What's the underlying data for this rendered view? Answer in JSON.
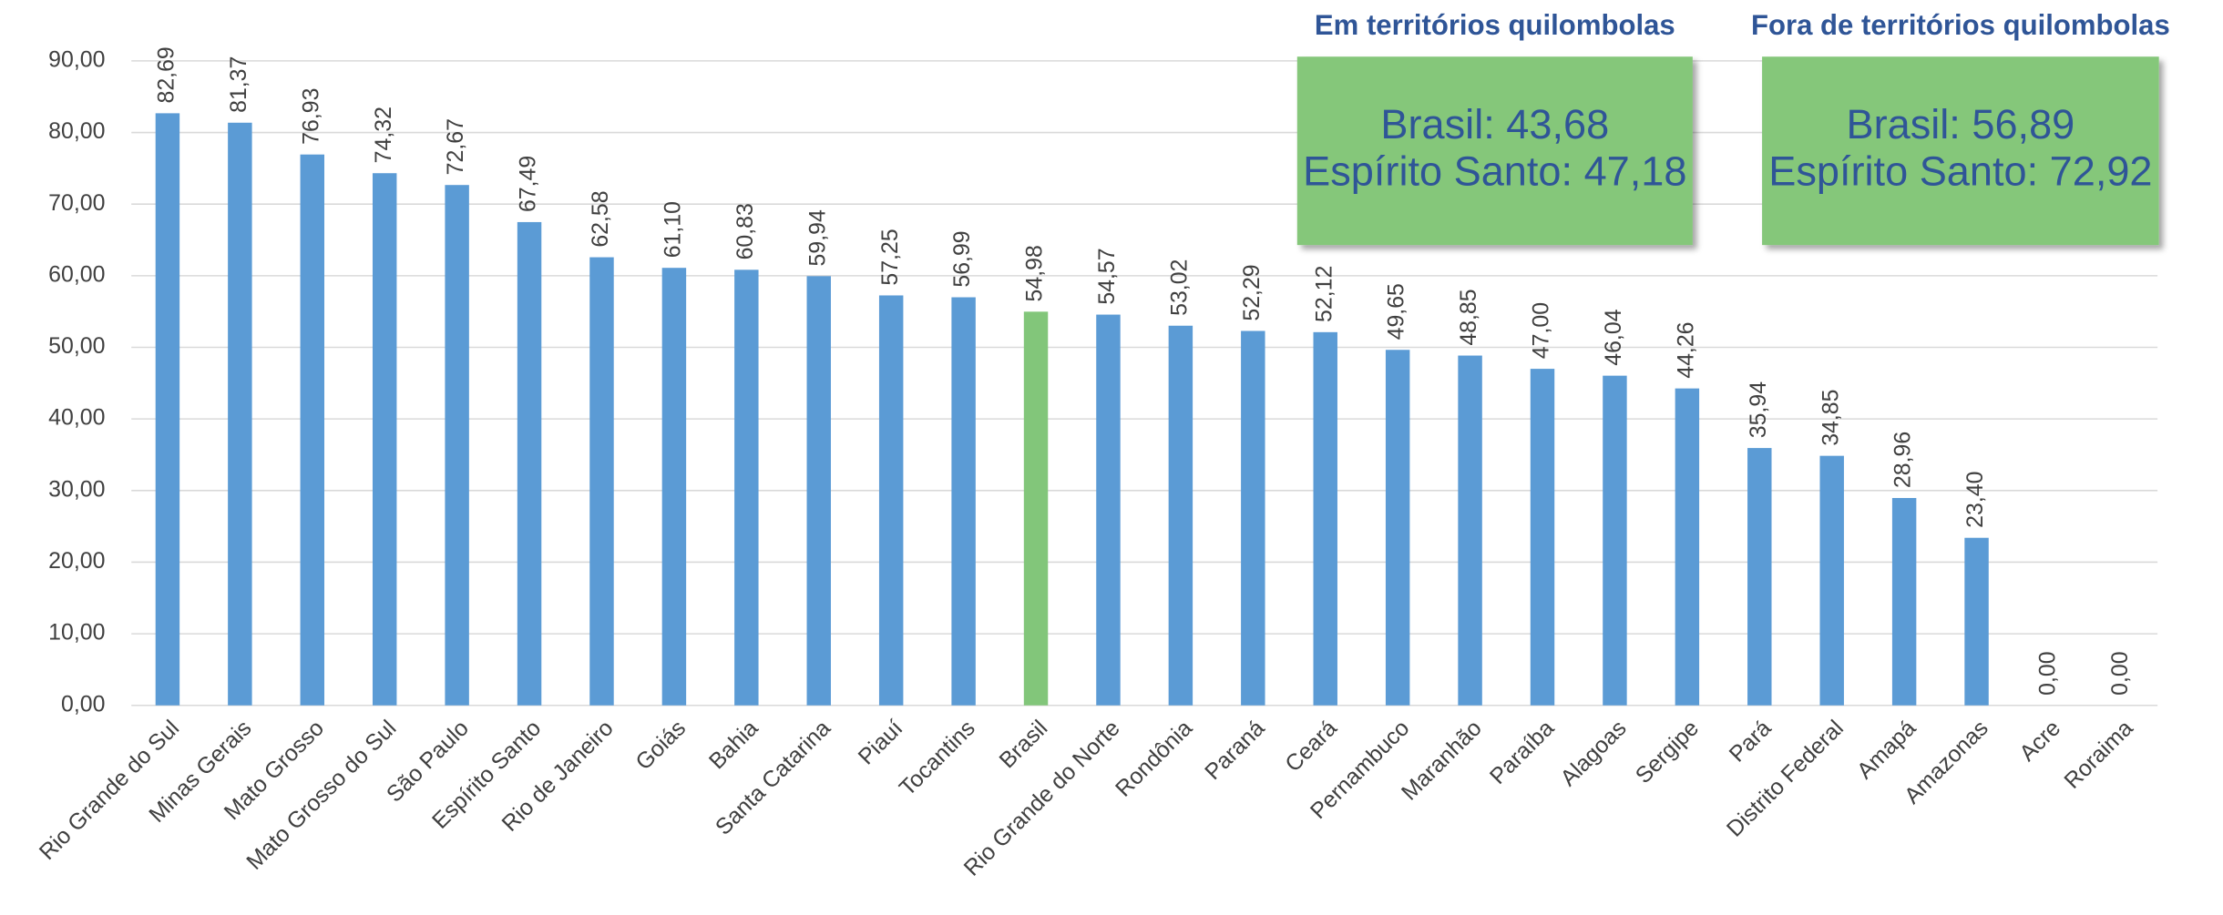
{
  "chart_data": {
    "type": "bar",
    "categories": [
      "Rio Grande do Sul",
      "Minas Gerais",
      "Mato Grosso",
      "Mato Grosso do Sul",
      "São Paulo",
      "Espírito Santo",
      "Rio de Janeiro",
      "Goiás",
      "Bahia",
      "Santa Catarina",
      "Piauí",
      "Tocantins",
      "Brasil",
      "Rio Grande do Norte",
      "Rondônia",
      "Paraná",
      "Ceará",
      "Pernambuco",
      "Maranhão",
      "Paraíba",
      "Alagoas",
      "Sergipe",
      "Pará",
      "Distrito Federal",
      "Amapá",
      "Amazonas",
      "Acre",
      "Roraima"
    ],
    "values": [
      82.69,
      81.37,
      76.93,
      74.32,
      72.67,
      67.49,
      62.58,
      61.1,
      60.83,
      59.94,
      57.25,
      56.99,
      54.98,
      54.57,
      53.02,
      52.29,
      52.12,
      49.65,
      48.85,
      47.0,
      46.04,
      44.26,
      35.94,
      34.85,
      28.96,
      23.4,
      0,
      0
    ],
    "value_labels": [
      "82,69",
      "81,37",
      "76,93",
      "74,32",
      "72,67",
      "67,49",
      "62,58",
      "61,10",
      "60,83",
      "59,94",
      "57,25",
      "56,99",
      "54,98",
      "54,57",
      "53,02",
      "52,29",
      "52,12",
      "49,65",
      "48,85",
      "47,00",
      "46,04",
      "44,26",
      "35,94",
      "34,85",
      "28,96",
      "23,40",
      "0,00",
      "0,00"
    ],
    "colors": [
      "#5b9bd5",
      "#5b9bd5",
      "#5b9bd5",
      "#5b9bd5",
      "#5b9bd5",
      "#5b9bd5",
      "#5b9bd5",
      "#5b9bd5",
      "#5b9bd5",
      "#5b9bd5",
      "#5b9bd5",
      "#5b9bd5",
      "#82c67a",
      "#5b9bd5",
      "#5b9bd5",
      "#5b9bd5",
      "#5b9bd5",
      "#5b9bd5",
      "#5b9bd5",
      "#5b9bd5",
      "#5b9bd5",
      "#5b9bd5",
      "#5b9bd5",
      "#5b9bd5",
      "#5b9bd5",
      "#5b9bd5",
      "#5b9bd5",
      "#5b9bd5"
    ],
    "ylim": [
      0,
      90
    ],
    "yticks": [
      {
        "value": 0,
        "label": "0,00"
      },
      {
        "value": 10,
        "label": "10,00"
      },
      {
        "value": 20,
        "label": "20,00"
      },
      {
        "value": 30,
        "label": "30,00"
      },
      {
        "value": 40,
        "label": "40,00"
      },
      {
        "value": 50,
        "label": "50,00"
      },
      {
        "value": 60,
        "label": "60,00"
      },
      {
        "value": 70,
        "label": "70,00"
      },
      {
        "value": 80,
        "label": "80,00"
      },
      {
        "value": 90,
        "label": "90,00"
      }
    ],
    "grid": true,
    "annotations": [
      {
        "title": "Em territórios quilombolas",
        "lines": [
          "Brasil: 43,68",
          "Espírito Santo: 47,18"
        ]
      },
      {
        "title": "Fora de territórios quilombolas",
        "lines": [
          "Brasil: 56,89",
          "Espírito Santo: 72,92"
        ]
      }
    ]
  }
}
